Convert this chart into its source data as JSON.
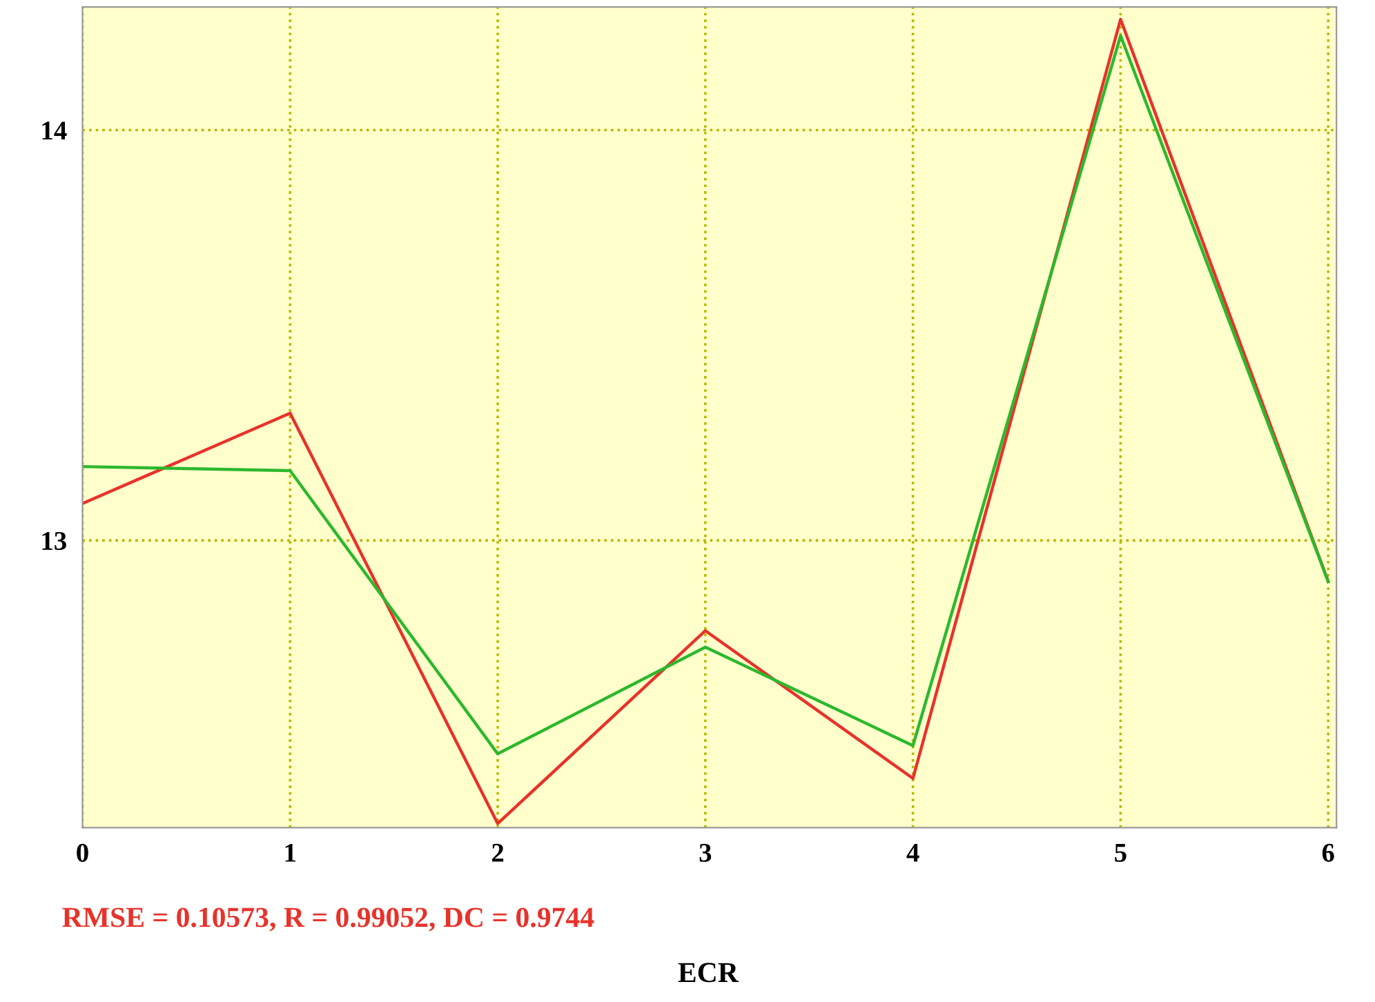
{
  "chart_data": {
    "type": "line",
    "xlabel": "ECR",
    "x": [
      0,
      1,
      2,
      3,
      4,
      5,
      6
    ],
    "series": [
      {
        "color": "#e8322a",
        "values": [
          13.09,
          13.31,
          12.31,
          12.78,
          12.42,
          14.27,
          12.9
        ]
      },
      {
        "color": "#2db82d",
        "values": [
          13.18,
          13.17,
          12.48,
          12.74,
          12.5,
          14.23,
          12.9
        ]
      }
    ],
    "xlim": [
      0,
      6.04
    ],
    "ylim": [
      12.3,
      14.3
    ],
    "xticks": [
      0,
      1,
      2,
      3,
      4,
      5,
      6
    ],
    "yticks": [
      13,
      14
    ],
    "grid": true,
    "marker": "none",
    "line_style": "solid",
    "annotations": [
      "RMSE = 0.10573, R = 0.99052, DC = 0.9744"
    ]
  }
}
